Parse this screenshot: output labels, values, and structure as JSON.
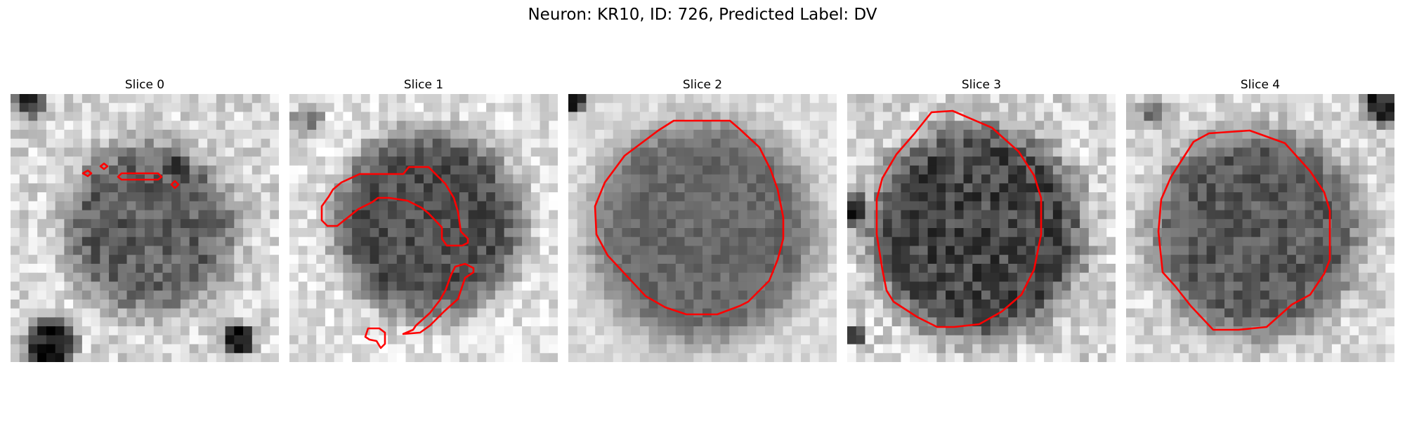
{
  "figure": {
    "title": "Neuron: KR10, ID: 726, Predicted Label: DV"
  },
  "slices": [
    {
      "label": "Slice 0"
    },
    {
      "label": "Slice 1"
    },
    {
      "label": "Slice 2"
    },
    {
      "label": "Slice 3"
    },
    {
      "label": "Slice 4"
    }
  ],
  "colors": {
    "contour": "#ff0000"
  }
}
